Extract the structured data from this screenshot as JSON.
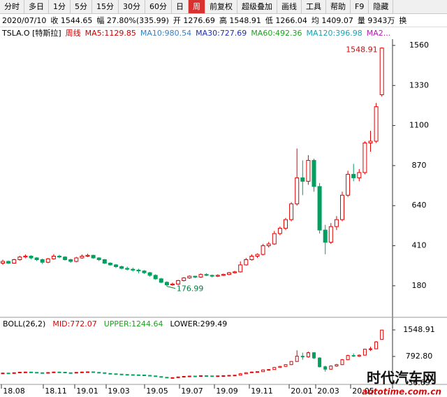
{
  "toolbar": [
    "分时",
    "多日",
    "1分",
    "5分",
    "15分",
    "30分",
    "60分",
    "日",
    "周",
    "前复权",
    "超级叠加",
    "画线",
    "工具",
    "帮助",
    "F9",
    "隐藏"
  ],
  "active_tab": "周",
  "quote_bar": [
    "2020/07/10",
    "收 1544.65",
    "幅 27.80%(335.99)",
    "开 1276.69",
    "高 1548.91",
    "低 1266.04",
    "均 1409.07",
    "量 9343万",
    "换"
  ],
  "ma_bar": [
    {
      "text": "TSLA.O [特斯拉]",
      "color": "#000000"
    },
    {
      "text": "周线",
      "color": "#cc0000"
    },
    {
      "text": "MA5:1129.85",
      "color": "#cc0000"
    },
    {
      "text": "MA10:980.54",
      "color": "#3a7fc0"
    },
    {
      "text": "MA30:727.69",
      "color": "#1c2fb0"
    },
    {
      "text": "MA60:492.36",
      "color": "#20a020"
    },
    {
      "text": "MA120:396.98",
      "color": "#20a0b0"
    },
    {
      "text": "MA2...",
      "color": "#b020b0"
    }
  ],
  "chart_data": {
    "type": "candlestick",
    "ylim": [
      15,
      1596
    ],
    "yticks": [
      180,
      410,
      640,
      870,
      1100,
      1330,
      1560
    ],
    "up_color": "#e00000",
    "down_color": "#00a060",
    "annotations": [
      {
        "text": "1548.91",
        "color": "#e00000"
      },
      {
        "text": "176.99",
        "color": "#008040"
      }
    ],
    "candles": [
      {
        "open": 310,
        "high": 330,
        "low": 300,
        "close": 320
      },
      {
        "open": 320,
        "high": 325,
        "low": 305,
        "close": 310
      },
      {
        "open": 310,
        "high": 335,
        "low": 308,
        "close": 330
      },
      {
        "open": 330,
        "high": 352,
        "low": 325,
        "close": 345
      },
      {
        "open": 345,
        "high": 360,
        "low": 338,
        "close": 350
      },
      {
        "open": 350,
        "high": 355,
        "low": 332,
        "close": 340
      },
      {
        "open": 340,
        "high": 345,
        "low": 322,
        "close": 330
      },
      {
        "open": 330,
        "high": 336,
        "low": 305,
        "close": 315
      },
      {
        "open": 315,
        "high": 340,
        "low": 310,
        "close": 335
      },
      {
        "open": 335,
        "high": 362,
        "low": 330,
        "close": 350
      },
      {
        "open": 350,
        "high": 358,
        "low": 338,
        "close": 345
      },
      {
        "open": 345,
        "high": 350,
        "low": 325,
        "close": 330
      },
      {
        "open": 330,
        "high": 335,
        "low": 312,
        "close": 320
      },
      {
        "open": 320,
        "high": 346,
        "low": 315,
        "close": 340
      },
      {
        "open": 340,
        "high": 360,
        "low": 335,
        "close": 350
      },
      {
        "open": 350,
        "high": 364,
        "low": 345,
        "close": 355
      },
      {
        "open": 355,
        "high": 358,
        "low": 335,
        "close": 340
      },
      {
        "open": 340,
        "high": 344,
        "low": 322,
        "close": 330
      },
      {
        "open": 330,
        "high": 334,
        "low": 305,
        "close": 310
      },
      {
        "open": 310,
        "high": 315,
        "low": 295,
        "close": 300
      },
      {
        "open": 300,
        "high": 305,
        "low": 282,
        "close": 290
      },
      {
        "open": 290,
        "high": 296,
        "low": 274,
        "close": 280
      },
      {
        "open": 280,
        "high": 290,
        "low": 268,
        "close": 275
      },
      {
        "open": 275,
        "high": 284,
        "low": 262,
        "close": 270
      },
      {
        "open": 270,
        "high": 278,
        "low": 252,
        "close": 265
      },
      {
        "open": 265,
        "high": 270,
        "low": 248,
        "close": 255
      },
      {
        "open": 255,
        "high": 260,
        "low": 232,
        "close": 240
      },
      {
        "open": 240,
        "high": 246,
        "low": 214,
        "close": 220
      },
      {
        "open": 220,
        "high": 225,
        "low": 195,
        "close": 200
      },
      {
        "open": 200,
        "high": 206,
        "low": 176.99,
        "close": 185
      },
      {
        "open": 185,
        "high": 198,
        "low": 180,
        "close": 190
      },
      {
        "open": 190,
        "high": 214,
        "low": 186,
        "close": 210
      },
      {
        "open": 210,
        "high": 230,
        "low": 205,
        "close": 225
      },
      {
        "open": 225,
        "high": 240,
        "low": 220,
        "close": 235
      },
      {
        "open": 235,
        "high": 238,
        "low": 224,
        "close": 230
      },
      {
        "open": 230,
        "high": 250,
        "low": 226,
        "close": 245
      },
      {
        "open": 245,
        "high": 252,
        "low": 236,
        "close": 240
      },
      {
        "open": 240,
        "high": 244,
        "low": 228,
        "close": 235
      },
      {
        "open": 235,
        "high": 246,
        "low": 230,
        "close": 240
      },
      {
        "open": 240,
        "high": 250,
        "low": 236,
        "close": 245
      },
      {
        "open": 245,
        "high": 260,
        "low": 240,
        "close": 255
      },
      {
        "open": 255,
        "high": 266,
        "low": 250,
        "close": 260
      },
      {
        "open": 260,
        "high": 320,
        "low": 256,
        "close": 300
      },
      {
        "open": 300,
        "high": 340,
        "low": 296,
        "close": 330
      },
      {
        "open": 330,
        "high": 360,
        "low": 325,
        "close": 350
      },
      {
        "open": 350,
        "high": 366,
        "low": 340,
        "close": 360
      },
      {
        "open": 360,
        "high": 420,
        "low": 355,
        "close": 410
      },
      {
        "open": 410,
        "high": 432,
        "low": 400,
        "close": 420
      },
      {
        "open": 420,
        "high": 495,
        "low": 415,
        "close": 480
      },
      {
        "open": 480,
        "high": 520,
        "low": 470,
        "close": 510
      },
      {
        "open": 510,
        "high": 570,
        "low": 500,
        "close": 560
      },
      {
        "open": 560,
        "high": 660,
        "low": 550,
        "close": 650
      },
      {
        "open": 650,
        "high": 968,
        "low": 640,
        "close": 800
      },
      {
        "open": 800,
        "high": 900,
        "low": 700,
        "close": 780
      },
      {
        "open": 780,
        "high": 930,
        "low": 760,
        "close": 900
      },
      {
        "open": 900,
        "high": 910,
        "low": 720,
        "close": 750
      },
      {
        "open": 750,
        "high": 770,
        "low": 480,
        "close": 500
      },
      {
        "open": 500,
        "high": 530,
        "low": 361,
        "close": 430
      },
      {
        "open": 430,
        "high": 540,
        "low": 420,
        "close": 520
      },
      {
        "open": 520,
        "high": 580,
        "low": 500,
        "close": 560
      },
      {
        "open": 560,
        "high": 720,
        "low": 550,
        "close": 700
      },
      {
        "open": 700,
        "high": 840,
        "low": 690,
        "close": 820
      },
      {
        "open": 820,
        "high": 880,
        "low": 780,
        "close": 800
      },
      {
        "open": 800,
        "high": 850,
        "low": 780,
        "close": 830
      },
      {
        "open": 830,
        "high": 1010,
        "low": 820,
        "close": 1000
      },
      {
        "open": 1000,
        "high": 1070,
        "low": 950,
        "close": 1010
      },
      {
        "open": 1010,
        "high": 1230,
        "low": 1000,
        "close": 1208
      },
      {
        "open": 1276.69,
        "high": 1548.91,
        "low": 1266.04,
        "close": 1544.65
      }
    ],
    "sub_panel": {
      "header": [
        {
          "text": "BOLL(26,2)",
          "color": "#000000"
        },
        {
          "text": "MID:772.07",
          "color": "#e00000"
        },
        {
          "text": "UPPER:1244.64",
          "color": "#20a020"
        },
        {
          "text": "LOWER:299.49",
          "color": "#000000"
        }
      ],
      "ylim": [
        36.69,
        1548.91
      ],
      "yticks": [
        {
          "value": 36.69,
          "label": "36.69"
        },
        {
          "value": 792.8,
          "label": "792.80"
        },
        {
          "value": 1548.91,
          "label": "1548.91"
        }
      ]
    },
    "xlabels": [
      "18.08",
      "18.11",
      "19.01",
      "19.03",
      "19.05",
      "19.07",
      "19.09",
      "19.11",
      "20.01",
      "20.03",
      "20.05"
    ]
  },
  "watermark": {
    "title": "时代汽车网",
    "url": "autotime.com.cn"
  }
}
